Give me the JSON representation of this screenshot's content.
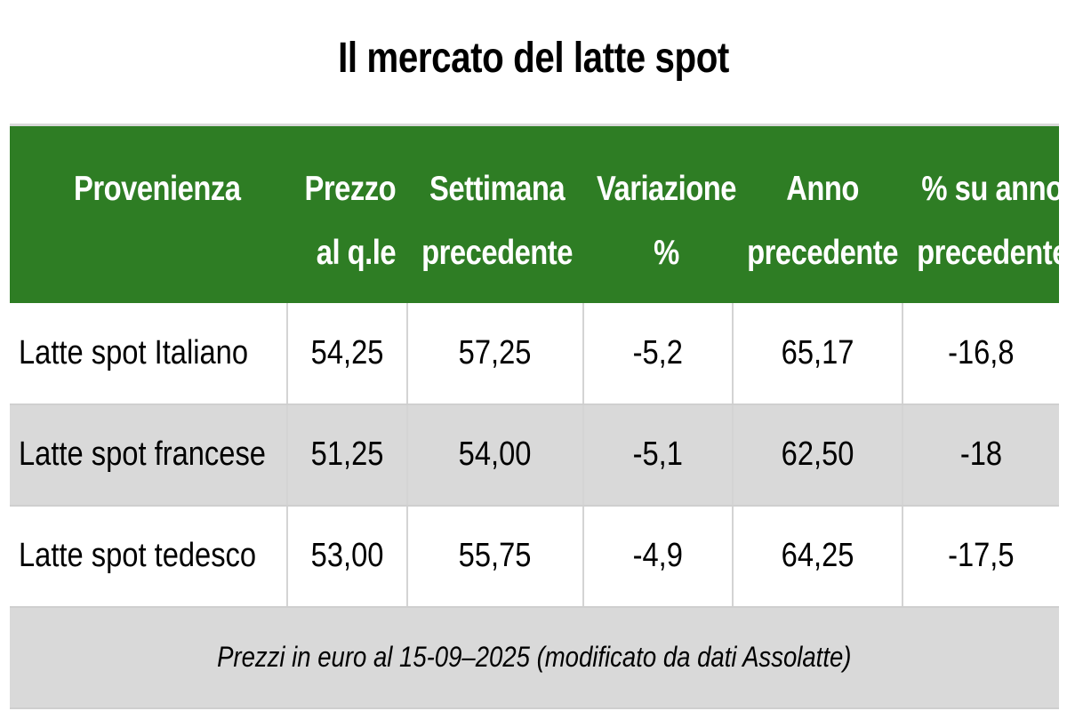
{
  "title": "Il mercato del latte spot",
  "table": {
    "headers": [
      [
        "Provenienza"
      ],
      [
        "Prezzo",
        "al q.le"
      ],
      [
        "Settimana",
        "precedente"
      ],
      [
        "Variazione",
        "%"
      ],
      [
        "Anno",
        "precedente"
      ],
      [
        "% su anno",
        "precedente"
      ]
    ],
    "rows": [
      [
        "Latte spot Italiano",
        "54,25",
        "57,25",
        "-5,2",
        "65,17",
        "-16,8"
      ],
      [
        "Latte spot francese",
        "51,25",
        "54,00",
        "-5,1",
        "62,50",
        "-18"
      ],
      [
        "Latte spot tedesco",
        "53,00",
        "55,75",
        "-4,9",
        "64,25",
        "-17,5"
      ]
    ],
    "footnote": "Prezzi in euro al 15-09–2025 (modificato da dati Assolatte)"
  },
  "colors": {
    "header_bg": "#2e7d24",
    "header_text": "#ffffff",
    "alt_row_bg": "#d9d9d9"
  }
}
